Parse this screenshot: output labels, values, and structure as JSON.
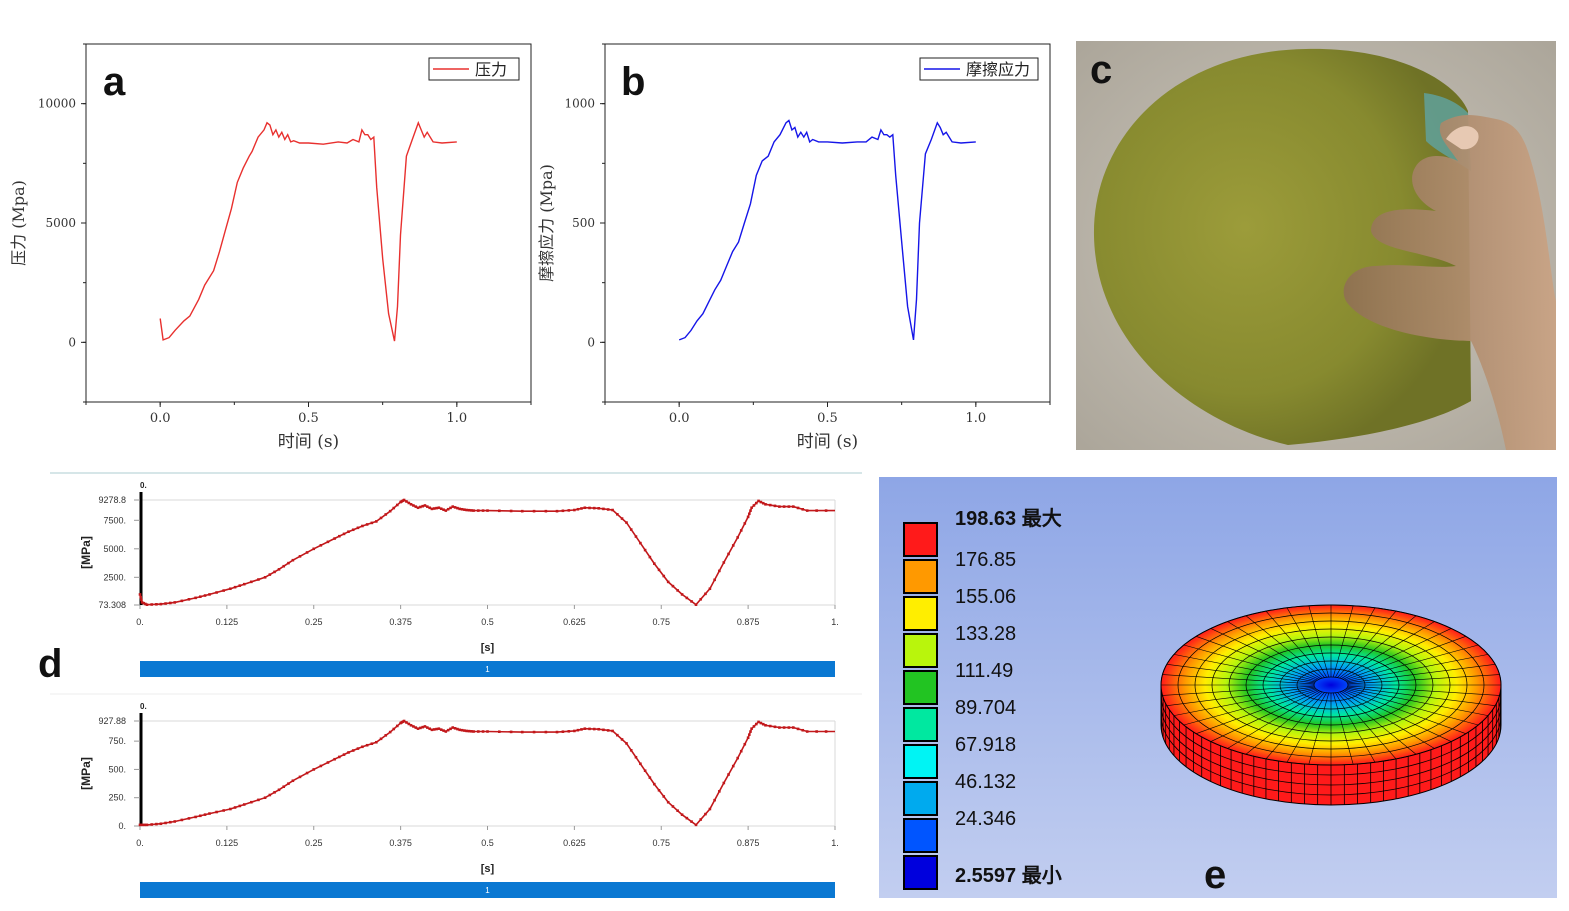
{
  "panel_labels": {
    "a": "a",
    "b": "b",
    "c": "c",
    "d": "d",
    "e": "e"
  },
  "chart_data": [
    {
      "id": "a",
      "type": "line",
      "xlabel": "时间 (s)",
      "ylabel": "压力 (Mpa)",
      "xlim": [
        -0.25,
        1.25
      ],
      "ylim": [
        -2500,
        12500
      ],
      "xticks": [
        "0.0",
        "0.5",
        "1.0"
      ],
      "yticks": [
        "0",
        "5000",
        "10000"
      ],
      "legend_position": "top-right",
      "color": "#e8302e",
      "series": [
        {
          "name": "压力",
          "x": [
            0,
            0.01,
            0.03,
            0.05,
            0.08,
            0.1,
            0.13,
            0.15,
            0.18,
            0.2,
            0.22,
            0.24,
            0.26,
            0.28,
            0.3,
            0.31,
            0.33,
            0.35,
            0.36,
            0.37,
            0.38,
            0.39,
            0.4,
            0.41,
            0.42,
            0.43,
            0.44,
            0.45,
            0.47,
            0.5,
            0.55,
            0.6,
            0.63,
            0.65,
            0.67,
            0.68,
            0.69,
            0.7,
            0.71,
            0.72,
            0.73,
            0.75,
            0.77,
            0.79,
            0.8,
            0.81,
            0.83,
            0.85,
            0.87,
            0.88,
            0.89,
            0.9,
            0.92,
            0.95,
            1.0
          ],
          "y": [
            1000,
            100,
            200,
            500,
            900,
            1100,
            1800,
            2400,
            3000,
            3800,
            4700,
            5600,
            6700,
            7300,
            7800,
            8000,
            8600,
            8900,
            9200,
            9100,
            8700,
            8900,
            8600,
            8800,
            8500,
            8700,
            8400,
            8450,
            8350,
            8350,
            8300,
            8400,
            8350,
            8500,
            8400,
            8900,
            8700,
            8700,
            8500,
            8600,
            6500,
            3500,
            1200,
            50,
            1500,
            4500,
            7800,
            8500,
            9200,
            8900,
            8600,
            8800,
            8400,
            8350,
            8400
          ]
        }
      ]
    },
    {
      "id": "b",
      "type": "line",
      "xlabel": "时间 (s)",
      "ylabel": "摩擦应力 (Mpa)",
      "xlim": [
        -0.25,
        1.25
      ],
      "ylim": [
        -250,
        1250
      ],
      "xticks": [
        "0.0",
        "0.5",
        "1.0"
      ],
      "yticks": [
        "0",
        "500",
        "1000"
      ],
      "legend_position": "top-right",
      "color": "#1515e8",
      "series": [
        {
          "name": "摩擦应力",
          "x": [
            0,
            0.02,
            0.04,
            0.06,
            0.08,
            0.1,
            0.12,
            0.14,
            0.16,
            0.18,
            0.2,
            0.22,
            0.24,
            0.26,
            0.28,
            0.3,
            0.32,
            0.34,
            0.36,
            0.37,
            0.38,
            0.39,
            0.4,
            0.41,
            0.42,
            0.43,
            0.44,
            0.45,
            0.47,
            0.5,
            0.55,
            0.6,
            0.63,
            0.65,
            0.67,
            0.68,
            0.69,
            0.7,
            0.71,
            0.72,
            0.73,
            0.75,
            0.77,
            0.79,
            0.8,
            0.81,
            0.83,
            0.85,
            0.87,
            0.88,
            0.89,
            0.9,
            0.92,
            0.95,
            1.0
          ],
          "y": [
            10,
            20,
            50,
            90,
            120,
            170,
            220,
            260,
            320,
            380,
            420,
            500,
            580,
            700,
            760,
            780,
            840,
            870,
            920,
            930,
            890,
            900,
            860,
            880,
            860,
            880,
            840,
            850,
            840,
            840,
            835,
            840,
            840,
            860,
            850,
            890,
            870,
            870,
            860,
            870,
            700,
            420,
            150,
            10,
            180,
            500,
            790,
            850,
            920,
            900,
            870,
            880,
            840,
            835,
            840
          ]
        }
      ]
    },
    {
      "id": "d-top",
      "type": "line",
      "ylabel": "[MPa]",
      "xlabel": "[s]",
      "xlim": [
        0,
        1
      ],
      "ylim": [
        73.308,
        9278.8
      ],
      "yticks": [
        "9278.8",
        "7500.",
        "5000.",
        "2500.",
        "73.308"
      ],
      "xticks": [
        "0.",
        "0.125",
        "0.25",
        "0.375",
        "0.5",
        "0.625",
        "0.75",
        "0.875",
        "1."
      ],
      "marker_label": "0.",
      "timeline_label": "1",
      "color": "#c2181b",
      "series": [
        {
          "x": [
            0,
            0.003,
            0.01,
            0.03,
            0.05,
            0.08,
            0.1,
            0.13,
            0.15,
            0.18,
            0.2,
            0.22,
            0.25,
            0.28,
            0.3,
            0.32,
            0.34,
            0.36,
            0.375,
            0.38,
            0.39,
            0.4,
            0.41,
            0.42,
            0.43,
            0.44,
            0.45,
            0.46,
            0.47,
            0.48,
            0.5,
            0.55,
            0.6,
            0.625,
            0.64,
            0.66,
            0.68,
            0.7,
            0.72,
            0.74,
            0.76,
            0.78,
            0.8,
            0.82,
            0.84,
            0.86,
            0.875,
            0.88,
            0.89,
            0.9,
            0.92,
            0.94,
            0.96,
            1.0
          ],
          "y": [
            1000,
            300,
            100,
            150,
            300,
            700,
            1000,
            1500,
            1900,
            2500,
            3200,
            4000,
            5000,
            5900,
            6500,
            7000,
            7400,
            8300,
            9100,
            9278.8,
            8900,
            8600,
            8800,
            8500,
            8600,
            8350,
            8700,
            8500,
            8400,
            8350,
            8350,
            8300,
            8300,
            8400,
            8600,
            8550,
            8400,
            7300,
            5500,
            3700,
            2100,
            1000,
            100,
            1500,
            3800,
            6000,
            7800,
            8600,
            9200,
            8900,
            8700,
            8700,
            8350,
            8350
          ]
        }
      ]
    },
    {
      "id": "d-bottom",
      "type": "line",
      "ylabel": "[MPa]",
      "xlabel": "[s]",
      "xlim": [
        0,
        1
      ],
      "ylim": [
        0,
        927.88
      ],
      "yticks": [
        "927.88",
        "750.",
        "500.",
        "250.",
        "0."
      ],
      "xticks": [
        "0.",
        "0.125",
        "0.25",
        "0.375",
        "0.5",
        "0.625",
        "0.75",
        "0.875",
        "1."
      ],
      "marker_label": "0.",
      "timeline_label": "1",
      "color": "#c2181b",
      "series": [
        {
          "x": [
            0,
            0.01,
            0.03,
            0.05,
            0.08,
            0.1,
            0.13,
            0.15,
            0.18,
            0.2,
            0.22,
            0.25,
            0.28,
            0.3,
            0.32,
            0.34,
            0.36,
            0.375,
            0.38,
            0.39,
            0.4,
            0.41,
            0.42,
            0.43,
            0.44,
            0.45,
            0.46,
            0.47,
            0.48,
            0.5,
            0.55,
            0.6,
            0.625,
            0.64,
            0.66,
            0.68,
            0.7,
            0.72,
            0.74,
            0.76,
            0.78,
            0.8,
            0.82,
            0.84,
            0.86,
            0.875,
            0.88,
            0.89,
            0.9,
            0.92,
            0.94,
            0.96,
            1.0
          ],
          "y": [
            10,
            10,
            20,
            40,
            80,
            110,
            150,
            190,
            250,
            320,
            400,
            500,
            590,
            650,
            700,
            740,
            830,
            910,
            927.88,
            890,
            860,
            880,
            850,
            860,
            835,
            870,
            850,
            840,
            835,
            835,
            830,
            830,
            840,
            860,
            855,
            840,
            730,
            550,
            370,
            210,
            100,
            10,
            150,
            380,
            600,
            780,
            860,
            920,
            890,
            870,
            870,
            835,
            835
          ]
        }
      ]
    }
  ],
  "fea_legend": {
    "values": [
      "198.63 最大",
      "176.85",
      "155.06",
      "133.28",
      "111.49",
      "89.704",
      "67.918",
      "46.132",
      "24.346",
      "2.5597 最小"
    ],
    "colors": [
      "#ff1a1a",
      "#ff9900",
      "#ffee00",
      "#b9f50c",
      "#22c422",
      "#00e8a0",
      "#00f4f4",
      "#00aaee",
      "#0055ff",
      "#0000dd"
    ]
  },
  "colors": {
    "legend_bg": "#8aa3e3",
    "timeline_bar": "#0a78d2",
    "photo_wafer": "#8a8a2a"
  }
}
